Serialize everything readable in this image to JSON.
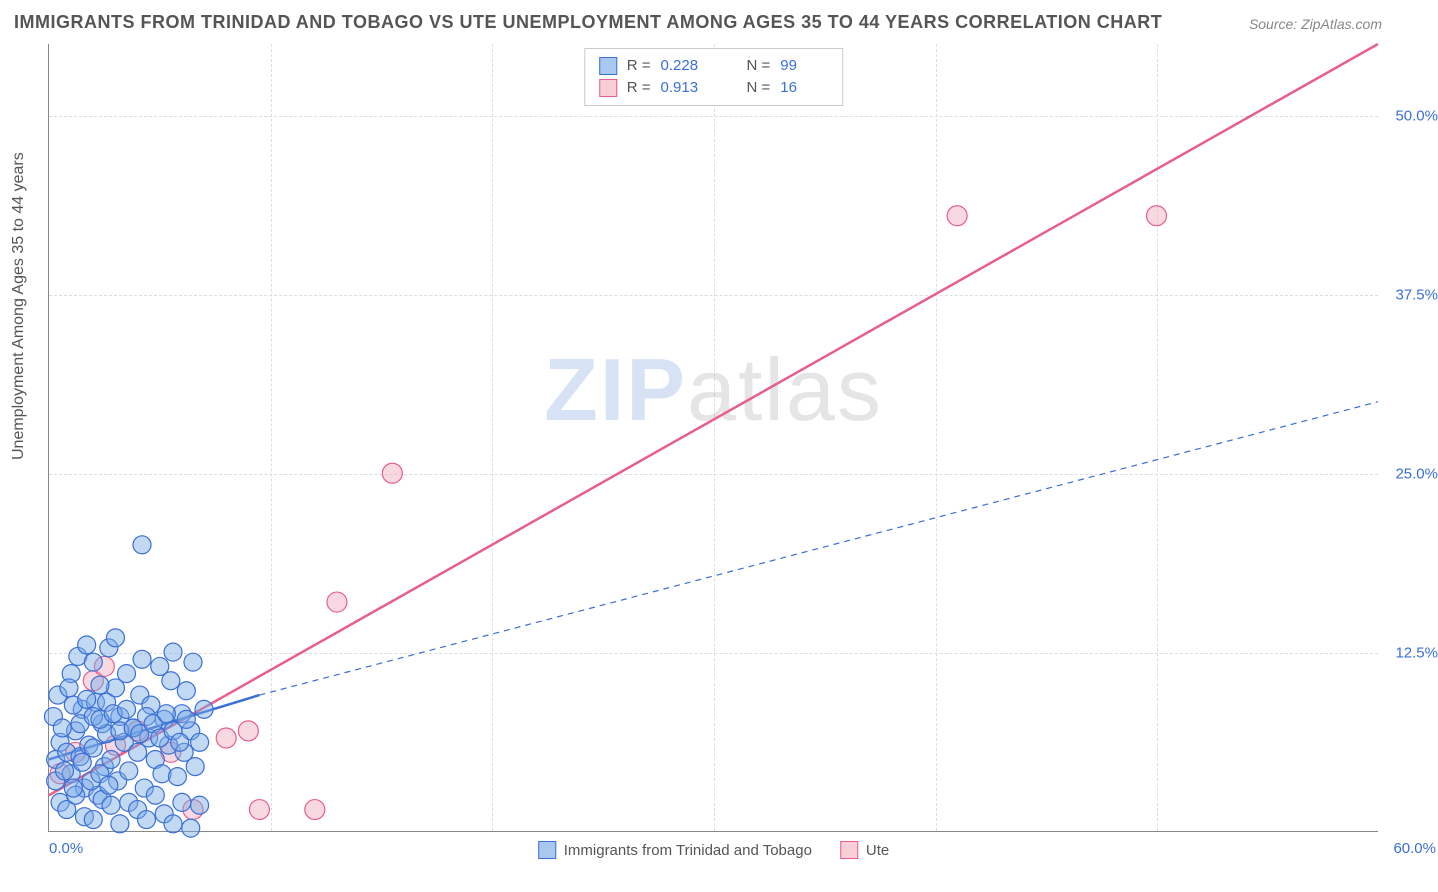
{
  "title": "IMMIGRANTS FROM TRINIDAD AND TOBAGO VS UTE UNEMPLOYMENT AMONG AGES 35 TO 44 YEARS CORRELATION CHART",
  "source": "Source: ZipAtlas.com",
  "y_axis_label": "Unemployment Among Ages 35 to 44 years",
  "watermark_a": "ZIP",
  "watermark_b": "atlas",
  "colors": {
    "blue_fill": "#a9c8ef",
    "blue_stroke": "#3b6fd6",
    "pink_fill": "#f7cdd7",
    "pink_stroke": "#e75f8b",
    "grid": "#dddddd",
    "axis": "#888888",
    "tick_text": "#3b6fd6",
    "title_text": "#555555"
  },
  "chart": {
    "type": "scatter",
    "xlim": [
      0,
      60
    ],
    "ylim": [
      0,
      55
    ],
    "x_ticks": [
      0,
      60
    ],
    "x_tick_labels": [
      "0.0%",
      "60.0%"
    ],
    "y_ticks": [
      12.5,
      25.0,
      37.5,
      50.0
    ],
    "y_tick_labels": [
      "12.5%",
      "25.0%",
      "37.5%",
      "50.0%"
    ],
    "x_grid_at": [
      10,
      20,
      30,
      40,
      50
    ],
    "background_color": "#ffffff",
    "grid_color": "#dddddd"
  },
  "legend_stats": [
    {
      "swatch_fill": "#a9c8ef",
      "swatch_stroke": "#3b6fd6",
      "r": "0.228",
      "n": "99"
    },
    {
      "swatch_fill": "#f7cdd7",
      "swatch_stroke": "#e75f8b",
      "r": "0.913",
      "n": "16"
    }
  ],
  "bottom_legend": [
    {
      "swatch_fill": "#a9c8ef",
      "swatch_stroke": "#3b6fd6",
      "label": "Immigrants from Trinidad and Tobago"
    },
    {
      "swatch_fill": "#f7cdd7",
      "swatch_stroke": "#e75f8b",
      "label": "Ute"
    }
  ],
  "series": {
    "blue": {
      "color_fill": "rgba(120,170,230,0.45)",
      "color_stroke": "#3b6fd6",
      "marker_r": 9,
      "points": [
        [
          0.3,
          5.0
        ],
        [
          0.5,
          6.2
        ],
        [
          0.8,
          5.5
        ],
        [
          1.0,
          4.0
        ],
        [
          1.2,
          7.0
        ],
        [
          1.4,
          5.2
        ],
        [
          1.5,
          8.5
        ],
        [
          1.6,
          3.0
        ],
        [
          1.8,
          6.0
        ],
        [
          2.0,
          5.8
        ],
        [
          2.1,
          9.0
        ],
        [
          2.2,
          2.5
        ],
        [
          2.4,
          7.5
        ],
        [
          2.5,
          4.5
        ],
        [
          2.6,
          6.8
        ],
        [
          2.8,
          5.0
        ],
        [
          3.0,
          10.0
        ],
        [
          3.1,
          3.5
        ],
        [
          3.2,
          8.0
        ],
        [
          3.4,
          6.2
        ],
        [
          3.5,
          11.0
        ],
        [
          3.6,
          4.2
        ],
        [
          3.8,
          7.2
        ],
        [
          4.0,
          5.5
        ],
        [
          4.1,
          9.5
        ],
        [
          4.2,
          12.0
        ],
        [
          4.3,
          3.0
        ],
        [
          4.5,
          6.5
        ],
        [
          4.6,
          8.8
        ],
        [
          4.8,
          5.0
        ],
        [
          5.0,
          11.5
        ],
        [
          5.1,
          4.0
        ],
        [
          5.2,
          7.8
        ],
        [
          5.4,
          6.0
        ],
        [
          5.5,
          10.5
        ],
        [
          5.6,
          12.5
        ],
        [
          5.8,
          3.8
        ],
        [
          6.0,
          8.2
        ],
        [
          6.1,
          5.5
        ],
        [
          6.2,
          9.8
        ],
        [
          6.4,
          7.0
        ],
        [
          6.5,
          11.8
        ],
        [
          6.6,
          4.5
        ],
        [
          6.8,
          6.2
        ],
        [
          7.0,
          8.5
        ],
        [
          1.0,
          11.0
        ],
        [
          1.3,
          12.2
        ],
        [
          1.7,
          13.0
        ],
        [
          2.0,
          11.8
        ],
        [
          2.3,
          10.2
        ],
        [
          2.7,
          12.8
        ],
        [
          3.0,
          13.5
        ],
        [
          0.5,
          2.0
        ],
        [
          0.8,
          1.5
        ],
        [
          1.2,
          2.5
        ],
        [
          1.6,
          1.0
        ],
        [
          2.0,
          0.8
        ],
        [
          2.4,
          2.2
        ],
        [
          2.8,
          1.8
        ],
        [
          3.2,
          0.5
        ],
        [
          3.6,
          2.0
        ],
        [
          4.0,
          1.5
        ],
        [
          4.4,
          0.8
        ],
        [
          4.8,
          2.5
        ],
        [
          5.2,
          1.2
        ],
        [
          5.6,
          0.5
        ],
        [
          6.0,
          2.0
        ],
        [
          6.4,
          0.2
        ],
        [
          6.8,
          1.8
        ],
        [
          0.2,
          8.0
        ],
        [
          0.4,
          9.5
        ],
        [
          0.6,
          7.2
        ],
        [
          0.9,
          10.0
        ],
        [
          1.1,
          8.8
        ],
        [
          1.4,
          7.5
        ],
        [
          1.7,
          9.2
        ],
        [
          2.0,
          8.0
        ],
        [
          2.3,
          7.8
        ],
        [
          2.6,
          9.0
        ],
        [
          2.9,
          8.2
        ],
        [
          3.2,
          7.0
        ],
        [
          3.5,
          8.5
        ],
        [
          3.8,
          7.2
        ],
        [
          4.1,
          6.8
        ],
        [
          4.4,
          8.0
        ],
        [
          4.7,
          7.5
        ],
        [
          5.0,
          6.5
        ],
        [
          5.3,
          8.2
        ],
        [
          5.6,
          7.0
        ],
        [
          5.9,
          6.2
        ],
        [
          6.2,
          7.8
        ],
        [
          0.3,
          3.5
        ],
        [
          0.7,
          4.2
        ],
        [
          1.1,
          3.0
        ],
        [
          1.5,
          4.8
        ],
        [
          1.9,
          3.5
        ],
        [
          2.3,
          4.0
        ],
        [
          2.7,
          3.2
        ],
        [
          4.2,
          20.0
        ]
      ],
      "trend_main": {
        "x1": 0,
        "y1": 5.0,
        "x2": 9.5,
        "y2": 9.5,
        "stroke_width": 2.5,
        "dash": "none"
      },
      "trend_ext": {
        "x1": 9.5,
        "y1": 9.5,
        "x2": 60,
        "y2": 30.0,
        "stroke_width": 1.2,
        "dash": "6,5"
      }
    },
    "pink": {
      "color_fill": "rgba(240,170,190,0.45)",
      "color_stroke": "#e75f8b",
      "marker_r": 10,
      "points": [
        [
          0.5,
          4.0
        ],
        [
          1.2,
          5.5
        ],
        [
          2.0,
          10.5
        ],
        [
          2.5,
          11.5
        ],
        [
          3.0,
          6.0
        ],
        [
          4.0,
          7.0
        ],
        [
          5.5,
          5.5
        ],
        [
          6.5,
          1.5
        ],
        [
          8.0,
          6.5
        ],
        [
          9.0,
          7.0
        ],
        [
          9.5,
          1.5
        ],
        [
          12.0,
          1.5
        ],
        [
          13.0,
          16.0
        ],
        [
          15.5,
          25.0
        ],
        [
          41.0,
          43.0
        ],
        [
          50.0,
          43.0
        ]
      ],
      "trend": {
        "x1": 0,
        "y1": 2.5,
        "x2": 60,
        "y2": 55.0,
        "stroke_width": 2.5,
        "dash": "none"
      }
    }
  }
}
